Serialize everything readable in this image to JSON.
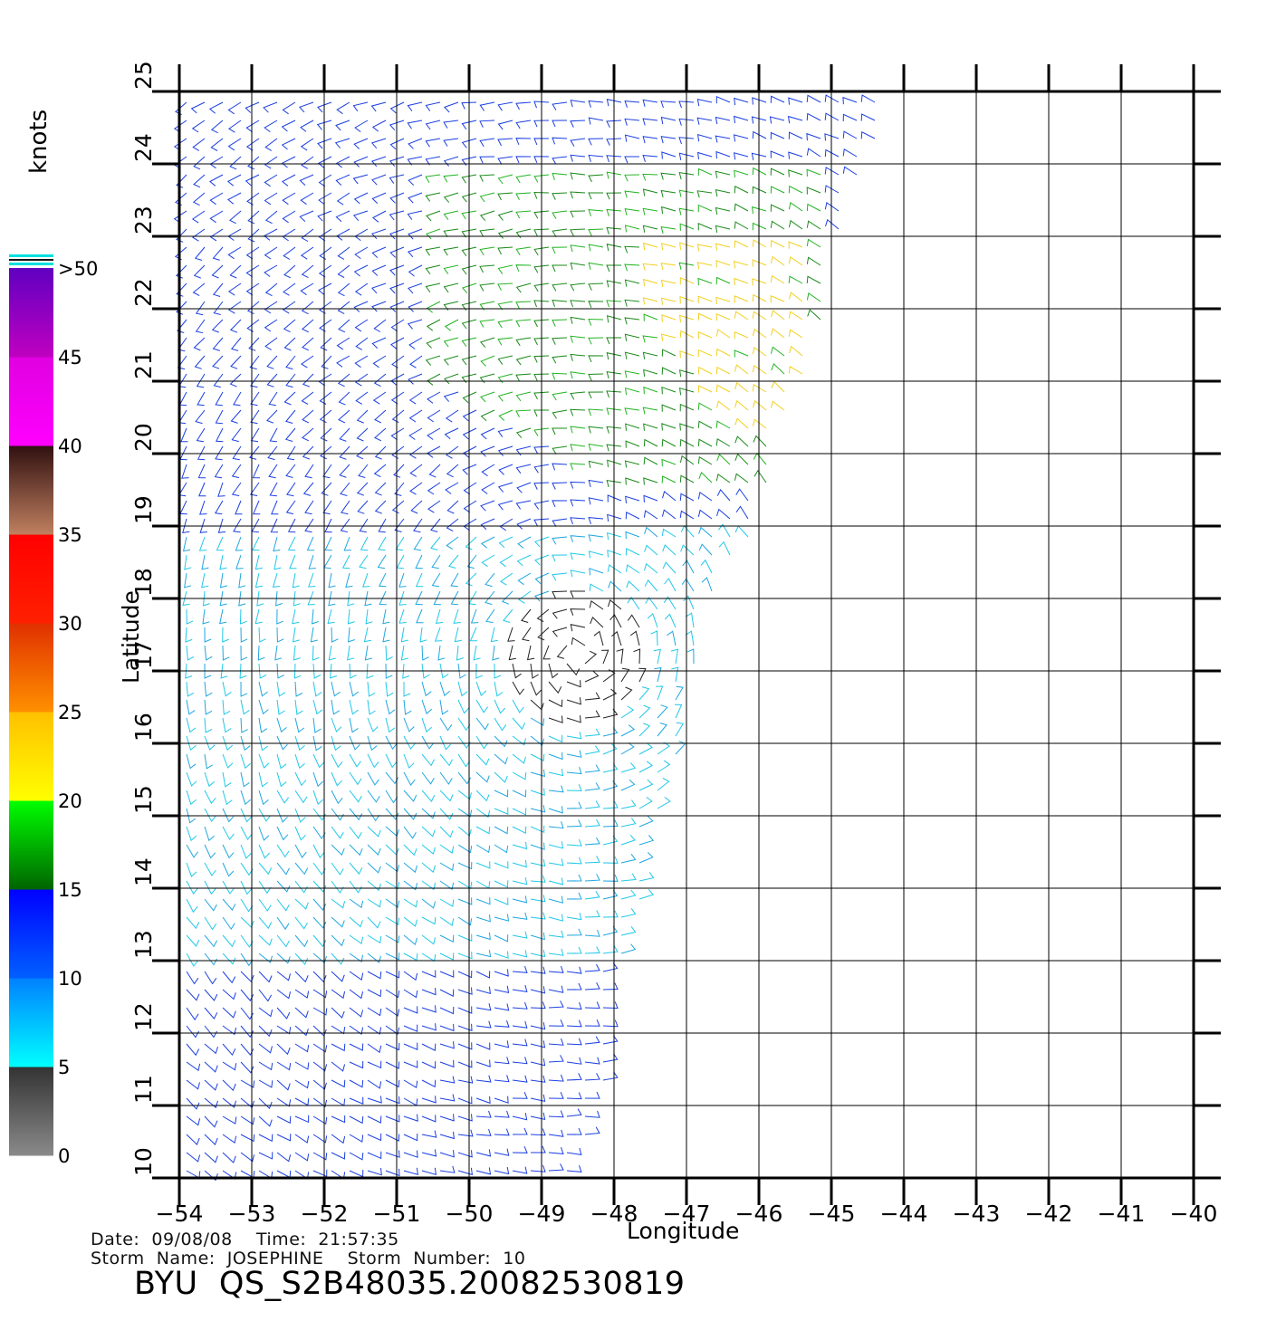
{
  "chart_data": {
    "type": "wind-barb map",
    "xlabel": "Longitude",
    "ylabel": "Latitude",
    "xlim": [
      -54,
      -40
    ],
    "ylim": [
      10,
      25
    ],
    "xticks": [
      -54,
      -53,
      -52,
      -51,
      -50,
      -49,
      -48,
      -47,
      -46,
      -45,
      -44,
      -43,
      -42,
      -41,
      -40
    ],
    "yticks": [
      10,
      11,
      12,
      13,
      14,
      15,
      16,
      17,
      18,
      19,
      20,
      21,
      22,
      23,
      24,
      25
    ],
    "grid": true,
    "colorbar": {
      "label": "knots",
      "placement": "left",
      "ticks": [
        "0",
        "5",
        "10",
        "15",
        "20",
        "25",
        "30",
        "35",
        "40",
        "45",
        ">50"
      ],
      "bins": [
        {
          "range": [
            0,
            5
          ],
          "colors": [
            "#8a8a8a",
            "#333333"
          ]
        },
        {
          "range": [
            5,
            10
          ],
          "colors": [
            "#00ffff",
            "#0080ff"
          ]
        },
        {
          "range": [
            10,
            15
          ],
          "colors": [
            "#0060ff",
            "#0000ff"
          ]
        },
        {
          "range": [
            15,
            20
          ],
          "colors": [
            "#006400",
            "#00ff00"
          ]
        },
        {
          "range": [
            20,
            25
          ],
          "colors": [
            "#ffff00",
            "#ffc000"
          ]
        },
        {
          "range": [
            25,
            30
          ],
          "colors": [
            "#ff9000",
            "#e03000"
          ]
        },
        {
          "range": [
            30,
            35
          ],
          "colors": [
            "#ff2000",
            "#ff0000"
          ]
        },
        {
          "range": [
            35,
            40
          ],
          "colors": [
            "#c08060",
            "#301010"
          ]
        },
        {
          "range": [
            40,
            45
          ],
          "colors": [
            "#ff00ff",
            "#e000e0"
          ]
        },
        {
          "range": [
            45,
            50
          ],
          "colors": [
            "#c000c0",
            "#6000c0"
          ]
        }
      ]
    },
    "swath_east_edge": [
      {
        "lat": 10.2,
        "lon": -48.5
      },
      {
        "lat": 11.0,
        "lon": -48.2
      },
      {
        "lat": 12.0,
        "lon": -48.0
      },
      {
        "lat": 13.0,
        "lon": -47.9
      },
      {
        "lat": 14.0,
        "lon": -47.6
      },
      {
        "lat": 15.0,
        "lon": -47.4
      },
      {
        "lat": 16.0,
        "lon": -47.1
      },
      {
        "lat": 17.0,
        "lon": -46.9
      },
      {
        "lat": 18.0,
        "lon": -46.7
      },
      {
        "lat": 19.0,
        "lon": -46.0
      },
      {
        "lat": 20.0,
        "lon": -45.8
      },
      {
        "lat": 21.0,
        "lon": -45.4
      },
      {
        "lat": 22.0,
        "lon": -45.1
      },
      {
        "lat": 23.0,
        "lon": -44.9
      },
      {
        "lat": 24.0,
        "lon": -44.5
      },
      {
        "lat": 25.1,
        "lon": -44.1
      }
    ],
    "wind_regions": [
      {
        "description": "low winds near storm center",
        "speed_kt": [
          0,
          5
        ],
        "lon": [
          -49.4,
          -47.6
        ],
        "lat": [
          16.0,
          18.2
        ]
      },
      {
        "description": "southern swath",
        "speed_kt": [
          5,
          12
        ],
        "lon": [
          -54,
          -46.8
        ],
        "lat": [
          10,
          19
        ]
      },
      {
        "description": "northern swath",
        "speed_kt": [
          10,
          15
        ],
        "lon": [
          -54,
          -44.1
        ],
        "lat": [
          19,
          25
        ]
      },
      {
        "description": "northeast band",
        "speed_kt": [
          15,
          20
        ],
        "lon": [
          -50.5,
          -45
        ],
        "lat": [
          19.5,
          24
        ]
      },
      {
        "description": "peak winds",
        "speed_kt": [
          20,
          27
        ],
        "lon": [
          -47.5,
          -45.2
        ],
        "lat": [
          20.3,
          23
        ]
      }
    ]
  },
  "info": {
    "date_time_line": "Date:  09/08/08    Time:  21:57:35",
    "storm_line": "Storm  Name:  JOSEPHINE    Storm  Number:  10",
    "product_title": "BYU  QS_S2B48035.20082530819"
  }
}
